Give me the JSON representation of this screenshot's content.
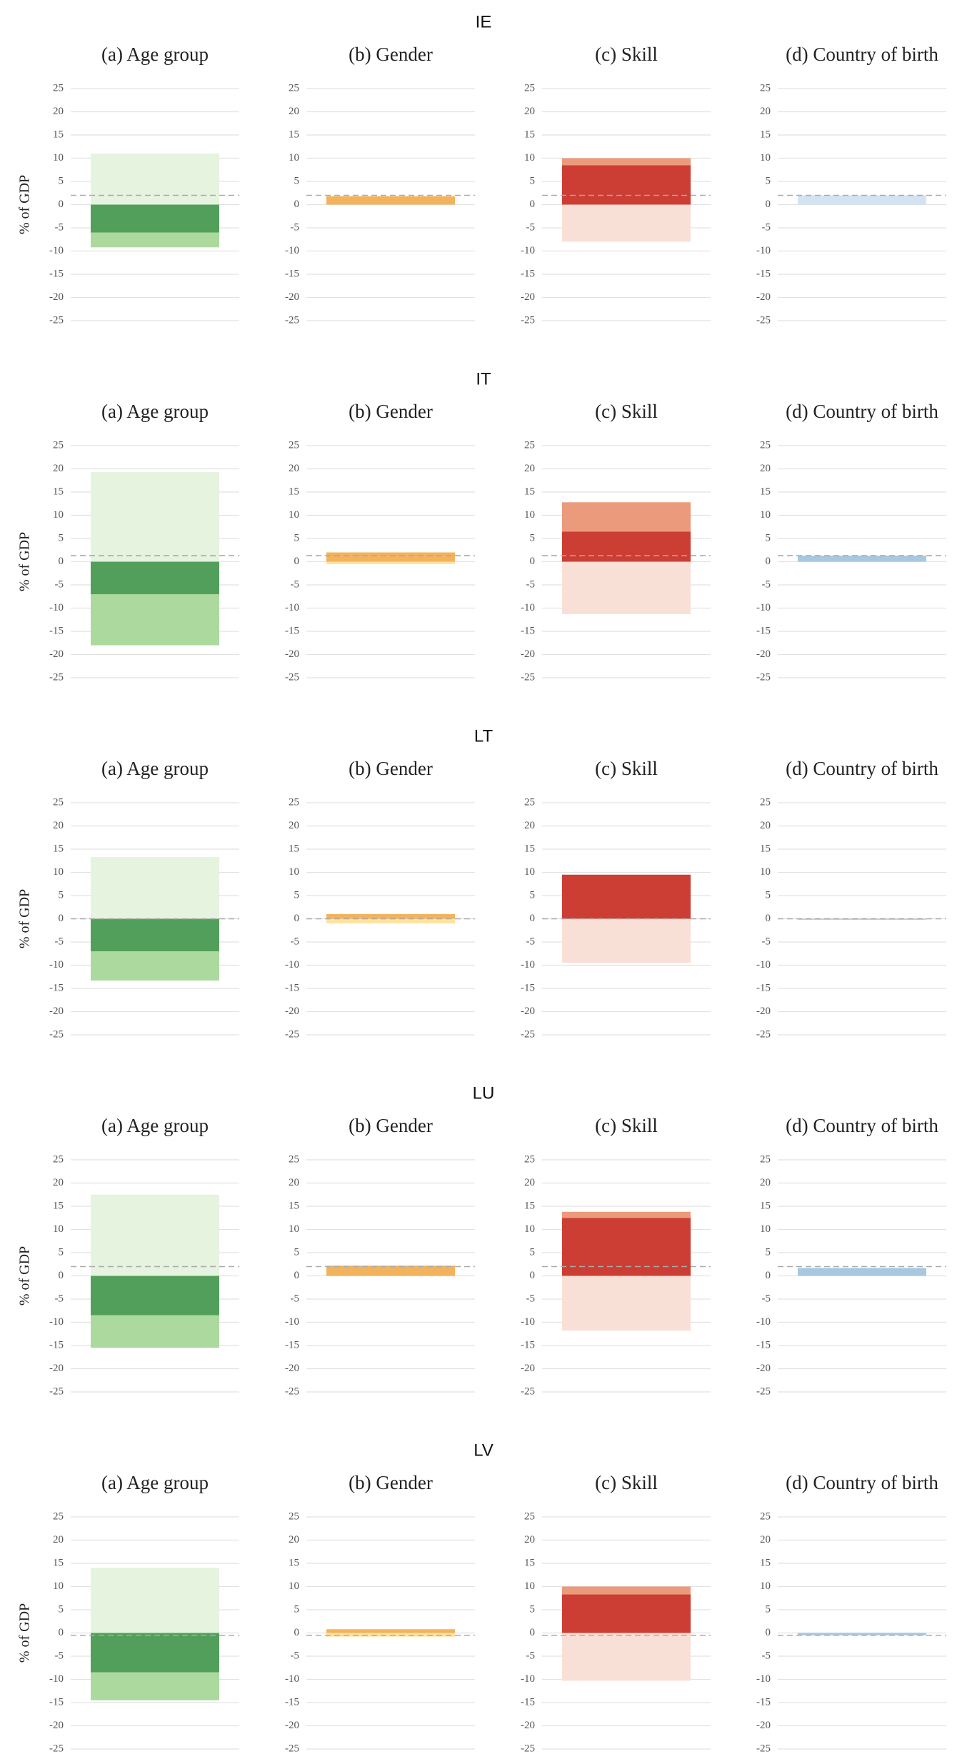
{
  "row_titles": [
    "IE",
    "IT",
    "LT",
    "LU",
    "LV"
  ],
  "chart_data": [
    {
      "type": "stacked_bar",
      "title": "(a) Age group",
      "ylabel": "% of GDP",
      "ylim": [
        -27,
        27
      ],
      "yticks": [
        25,
        20,
        15,
        10,
        5,
        0,
        -5,
        -10,
        -15,
        -20,
        -25
      ],
      "grid": true,
      "reference_line": 2,
      "series": [
        {
          "color": "#e5f3df",
          "values": [
            11
          ]
        },
        {
          "color": "#529f5b",
          "values": [
            -6
          ]
        },
        {
          "color": "#acd99d",
          "values": [
            -3.2
          ]
        }
      ]
    },
    {
      "type": "stacked_bar",
      "title": "(b) Gender",
      "ylim": [
        -27,
        27
      ],
      "yticks": [
        25,
        20,
        15,
        10,
        5,
        0,
        -5,
        -10,
        -15,
        -20,
        -25
      ],
      "grid": true,
      "reference_line": 2,
      "series": [
        {
          "color": "#f3b25c",
          "values": [
            1.8
          ]
        }
      ]
    },
    {
      "type": "stacked_bar",
      "title": "(c) Skill",
      "ylim": [
        -27,
        27
      ],
      "yticks": [
        25,
        20,
        15,
        10,
        5,
        0,
        -5,
        -10,
        -15,
        -20,
        -25
      ],
      "grid": true,
      "reference_line": 2,
      "series": [
        {
          "color": "#cc3d33",
          "values": [
            8.5
          ]
        },
        {
          "color": "#ec9a7c",
          "values": [
            1.5
          ]
        },
        {
          "color": "#f9e0d6",
          "values": [
            -8
          ]
        }
      ]
    },
    {
      "type": "stacked_bar",
      "title": "(d) Country of birth",
      "ylim": [
        -27,
        27
      ],
      "yticks": [
        25,
        20,
        15,
        10,
        5,
        0,
        -5,
        -10,
        -15,
        -20,
        -25
      ],
      "grid": true,
      "reference_line": 2,
      "series": [
        {
          "color": "#d3e3f3",
          "values": [
            2
          ]
        }
      ]
    },
    {
      "type": "stacked_bar",
      "title": "(a) Age group",
      "ylabel": "% of GDP",
      "ylim": [
        -27,
        27
      ],
      "yticks": [
        25,
        20,
        15,
        10,
        5,
        0,
        -5,
        -10,
        -15,
        -20,
        -25
      ],
      "grid": true,
      "reference_line": 1.3,
      "series": [
        {
          "color": "#e5f3df",
          "values": [
            19.3
          ]
        },
        {
          "color": "#529f5b",
          "values": [
            -7
          ]
        },
        {
          "color": "#acd99d",
          "values": [
            -11
          ]
        }
      ]
    },
    {
      "type": "stacked_bar",
      "title": "(b) Gender",
      "ylim": [
        -27,
        27
      ],
      "yticks": [
        25,
        20,
        15,
        10,
        5,
        0,
        -5,
        -10,
        -15,
        -20,
        -25
      ],
      "grid": true,
      "reference_line": 1.3,
      "series": [
        {
          "color": "#f3b25c",
          "values": [
            2
          ]
        },
        {
          "color": "#fde3a2",
          "values": [
            -0.5
          ]
        }
      ]
    },
    {
      "type": "stacked_bar",
      "title": "(c) Skill",
      "ylim": [
        -27,
        27
      ],
      "yticks": [
        25,
        20,
        15,
        10,
        5,
        0,
        -5,
        -10,
        -15,
        -20,
        -25
      ],
      "grid": true,
      "reference_line": 1.3,
      "series": [
        {
          "color": "#cc3d33",
          "values": [
            6.5
          ]
        },
        {
          "color": "#ec9a7c",
          "values": [
            6.3
          ]
        },
        {
          "color": "#f9e0d6",
          "values": [
            -11.3
          ]
        }
      ]
    },
    {
      "type": "stacked_bar",
      "title": "(d) Country of birth",
      "ylim": [
        -27,
        27
      ],
      "yticks": [
        25,
        20,
        15,
        10,
        5,
        0,
        -5,
        -10,
        -15,
        -20,
        -25
      ],
      "grid": true,
      "reference_line": 1.3,
      "series": [
        {
          "color": "#a8c8e0",
          "values": [
            1.3
          ]
        }
      ]
    },
    {
      "type": "stacked_bar",
      "title": "(a) Age group",
      "ylabel": "% of GDP",
      "ylim": [
        -27,
        27
      ],
      "yticks": [
        25,
        20,
        15,
        10,
        5,
        0,
        -5,
        -10,
        -15,
        -20,
        -25
      ],
      "grid": true,
      "reference_line": 0,
      "series": [
        {
          "color": "#e5f3df",
          "values": [
            13.3
          ]
        },
        {
          "color": "#529f5b",
          "values": [
            -7
          ]
        },
        {
          "color": "#acd99d",
          "values": [
            -6.3
          ]
        }
      ]
    },
    {
      "type": "stacked_bar",
      "title": "(b) Gender",
      "ylim": [
        -27,
        27
      ],
      "yticks": [
        25,
        20,
        15,
        10,
        5,
        0,
        -5,
        -10,
        -15,
        -20,
        -25
      ],
      "grid": true,
      "reference_line": 0,
      "series": [
        {
          "color": "#f3b25c",
          "values": [
            1
          ]
        },
        {
          "color": "#fde3a2",
          "values": [
            -1
          ]
        }
      ]
    },
    {
      "type": "stacked_bar",
      "title": "(c) Skill",
      "ylim": [
        -27,
        27
      ],
      "yticks": [
        25,
        20,
        15,
        10,
        5,
        0,
        -5,
        -10,
        -15,
        -20,
        -25
      ],
      "grid": true,
      "reference_line": 0,
      "series": [
        {
          "color": "#cc3d33",
          "values": [
            9.5
          ]
        },
        {
          "color": "#f9e0d6",
          "values": [
            -9.5
          ]
        }
      ]
    },
    {
      "type": "stacked_bar",
      "title": "(d) Country of birth",
      "ylim": [
        -27,
        27
      ],
      "yticks": [
        25,
        20,
        15,
        10,
        5,
        0,
        -5,
        -10,
        -15,
        -20,
        -25
      ],
      "grid": true,
      "reference_line": 0,
      "series": [
        {
          "color": "#a8c8e0",
          "values": [
            -0.2
          ]
        }
      ]
    },
    {
      "type": "stacked_bar",
      "title": "(a) Age group",
      "ylabel": "% of GDP",
      "ylim": [
        -27,
        27
      ],
      "yticks": [
        25,
        20,
        15,
        10,
        5,
        0,
        -5,
        -10,
        -15,
        -20,
        -25
      ],
      "grid": true,
      "reference_line": 2,
      "series": [
        {
          "color": "#e5f3df",
          "values": [
            17.5
          ]
        },
        {
          "color": "#529f5b",
          "values": [
            -8.5
          ]
        },
        {
          "color": "#acd99d",
          "values": [
            -7
          ]
        }
      ]
    },
    {
      "type": "stacked_bar",
      "title": "(b) Gender",
      "ylim": [
        -27,
        27
      ],
      "yticks": [
        25,
        20,
        15,
        10,
        5,
        0,
        -5,
        -10,
        -15,
        -20,
        -25
      ],
      "grid": true,
      "reference_line": 2,
      "series": [
        {
          "color": "#f3b25c",
          "values": [
            2.2
          ]
        }
      ]
    },
    {
      "type": "stacked_bar",
      "title": "(c) Skill",
      "ylim": [
        -27,
        27
      ],
      "yticks": [
        25,
        20,
        15,
        10,
        5,
        0,
        -5,
        -10,
        -15,
        -20,
        -25
      ],
      "grid": true,
      "reference_line": 2,
      "series": [
        {
          "color": "#cc3d33",
          "values": [
            12.5
          ]
        },
        {
          "color": "#ec9a7c",
          "values": [
            1.3
          ]
        },
        {
          "color": "#f9e0d6",
          "values": [
            -11.8
          ]
        }
      ]
    },
    {
      "type": "stacked_bar",
      "title": "(d) Country of birth",
      "ylim": [
        -27,
        27
      ],
      "yticks": [
        25,
        20,
        15,
        10,
        5,
        0,
        -5,
        -10,
        -15,
        -20,
        -25
      ],
      "grid": true,
      "reference_line": 2,
      "series": [
        {
          "color": "#a8c8e0",
          "values": [
            1.7
          ]
        }
      ]
    },
    {
      "type": "stacked_bar",
      "title": "(a) Age group",
      "ylabel": "% of GDP",
      "ylim": [
        -27,
        27
      ],
      "yticks": [
        25,
        20,
        15,
        10,
        5,
        0,
        -5,
        -10,
        -15,
        -20,
        -25
      ],
      "grid": true,
      "reference_line": -0.5,
      "series": [
        {
          "color": "#e5f3df",
          "values": [
            14
          ]
        },
        {
          "color": "#529f5b",
          "values": [
            -8.5
          ]
        },
        {
          "color": "#acd99d",
          "values": [
            -6
          ]
        }
      ]
    },
    {
      "type": "stacked_bar",
      "title": "(b) Gender",
      "ylim": [
        -27,
        27
      ],
      "yticks": [
        25,
        20,
        15,
        10,
        5,
        0,
        -5,
        -10,
        -15,
        -20,
        -25
      ],
      "grid": true,
      "reference_line": -0.5,
      "series": [
        {
          "color": "#f3b25c",
          "values": [
            0.8
          ]
        },
        {
          "color": "#fde3a2",
          "values": [
            -0.8
          ]
        }
      ]
    },
    {
      "type": "stacked_bar",
      "title": "(c) Skill",
      "ylim": [
        -27,
        27
      ],
      "yticks": [
        25,
        20,
        15,
        10,
        5,
        0,
        -5,
        -10,
        -15,
        -20,
        -25
      ],
      "grid": true,
      "reference_line": -0.5,
      "series": [
        {
          "color": "#cc3d33",
          "values": [
            8.3
          ]
        },
        {
          "color": "#ec9a7c",
          "values": [
            1.7
          ]
        },
        {
          "color": "#f9e0d6",
          "values": [
            -10.3
          ]
        }
      ]
    },
    {
      "type": "stacked_bar",
      "title": "(d) Country of birth",
      "ylim": [
        -27,
        27
      ],
      "yticks": [
        25,
        20,
        15,
        10,
        5,
        0,
        -5,
        -10,
        -15,
        -20,
        -25
      ],
      "grid": true,
      "reference_line": -0.5,
      "series": [
        {
          "color": "#a8c8e0",
          "values": [
            -0.5
          ]
        }
      ]
    }
  ]
}
